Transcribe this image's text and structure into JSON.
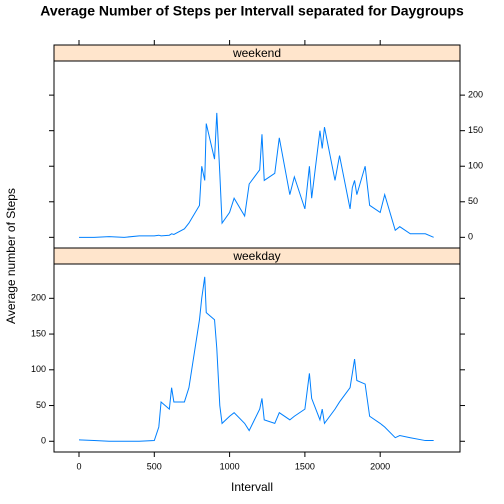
{
  "chart_data": {
    "type": "line",
    "title": "Average Number of Steps per Intervall separated for Daygroups",
    "xlabel": "Intervall",
    "ylabel": "Average number of Steps",
    "x": [
      0,
      100,
      200,
      300,
      400,
      500,
      530,
      545,
      600,
      615,
      630,
      700,
      730,
      800,
      815,
      835,
      845,
      900,
      915,
      935,
      950,
      1000,
      1030,
      1100,
      1130,
      1200,
      1215,
      1230,
      1300,
      1330,
      1400,
      1430,
      1500,
      1530,
      1545,
      1600,
      1615,
      1630,
      1700,
      1730,
      1800,
      1815,
      1830,
      1845,
      1900,
      1930,
      2000,
      2030,
      2100,
      2130,
      2200,
      2300,
      2355
    ],
    "series": [
      {
        "name": "weekend",
        "color": "#0080ff",
        "values": [
          0,
          0,
          1,
          0,
          2,
          2,
          3,
          2,
          3,
          5,
          4,
          12,
          20,
          45,
          100,
          80,
          160,
          110,
          175,
          90,
          20,
          35,
          55,
          30,
          75,
          95,
          145,
          80,
          90,
          140,
          60,
          85,
          40,
          100,
          55,
          150,
          125,
          155,
          80,
          115,
          40,
          70,
          80,
          60,
          100,
          45,
          35,
          60,
          10,
          15,
          5,
          5,
          0
        ]
      },
      {
        "name": "weekday",
        "color": "#0080ff",
        "values": [
          2,
          1,
          0,
          0,
          0,
          1,
          20,
          55,
          45,
          75,
          55,
          55,
          75,
          170,
          200,
          230,
          180,
          170,
          130,
          50,
          25,
          35,
          40,
          25,
          15,
          45,
          60,
          30,
          25,
          40,
          30,
          35,
          45,
          95,
          60,
          30,
          45,
          25,
          45,
          55,
          75,
          95,
          115,
          85,
          80,
          35,
          25,
          20,
          5,
          8,
          5,
          1,
          1
        ]
      }
    ],
    "xlim": [
      -166,
      2530
    ],
    "xticks": [
      0,
      500,
      1000,
      1500,
      2000
    ],
    "ylim": [
      -15,
      248
    ],
    "yticks": [
      0,
      50,
      100,
      150,
      200
    ],
    "strip_color": "#ffe5cc"
  }
}
